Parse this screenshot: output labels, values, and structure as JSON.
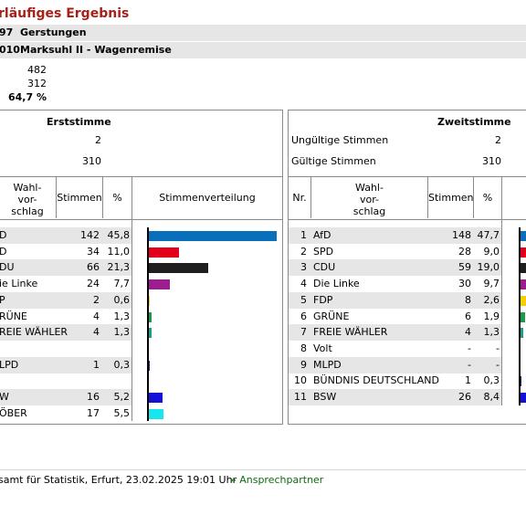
{
  "header": {
    "title": "rläufiges Ergebnis",
    "row1": {
      "code": "97",
      "name": "Gerstungen"
    },
    "row2": {
      "code": "010",
      "name": "Marksuhl II - Wagenremise"
    }
  },
  "stats": {
    "values": [
      "482",
      "312",
      "64,7 %"
    ]
  },
  "erststimme": {
    "title": "Erststimme",
    "invalid_value": "2",
    "valid_value": "310",
    "col_headers": {
      "vorschlag": "Wahl-\nvor-\nschlag",
      "stimmen": "Stimmen",
      "pct": "%",
      "verteilung": "Stimmenverteilung"
    },
    "rows": [
      {
        "name": "D",
        "votes": "142",
        "pct": "45,8",
        "value": 45.8,
        "color": "#0a6fba"
      },
      {
        "name": "D",
        "votes": "34",
        "pct": "11,0",
        "value": 11.0,
        "color": "#e2001a"
      },
      {
        "name": "DU",
        "votes": "66",
        "pct": "21,3",
        "value": 21.3,
        "color": "#1f1f1f"
      },
      {
        "name": "ie Linke",
        "votes": "24",
        "pct": "7,7",
        "value": 7.7,
        "color": "#9b1d8f"
      },
      {
        "name": "P",
        "votes": "2",
        "pct": "0,6",
        "value": 0.6,
        "color": "#f5d000"
      },
      {
        "name": "RÜNE",
        "votes": "4",
        "pct": "1,3",
        "value": 1.3,
        "color": "#1d9a47"
      },
      {
        "name": "REIE WÄHLER",
        "votes": "4",
        "pct": "1,3",
        "value": 1.3,
        "color": "#1a9e8f"
      },
      {
        "name": "",
        "votes": "",
        "pct": "",
        "value": 0,
        "color": "#ffffff"
      },
      {
        "name": "LPD",
        "votes": "1",
        "pct": "0,3",
        "value": 0.3,
        "color": "#1b2a7a"
      },
      {
        "name": "",
        "votes": "",
        "pct": "",
        "value": 0,
        "color": "#ffffff"
      },
      {
        "name": "W",
        "votes": "16",
        "pct": "5,2",
        "value": 5.2,
        "color": "#1410d6"
      },
      {
        "name": "ÖBER",
        "votes": "17",
        "pct": "5,5",
        "value": 5.5,
        "color": "#17e6ef"
      }
    ]
  },
  "zweitstimme": {
    "title": "Zweitstimme",
    "invalid_label": "Ungültige Stimmen",
    "invalid_value": "2",
    "valid_label": "Gültige Stimmen",
    "valid_value": "310",
    "col_headers": {
      "nr": "Nr.",
      "vorschlag": "Wahl-\nvor-\nschlag",
      "stimmen": "Stimmen",
      "pct": "%"
    },
    "rows": [
      {
        "nr": "1",
        "name": "AfD",
        "votes": "148",
        "pct": "47,7",
        "value": 47.7,
        "color": "#0a6fba"
      },
      {
        "nr": "2",
        "name": "SPD",
        "votes": "28",
        "pct": "9,0",
        "value": 9.0,
        "color": "#e2001a"
      },
      {
        "nr": "3",
        "name": "CDU",
        "votes": "59",
        "pct": "19,0",
        "value": 19.0,
        "color": "#1f1f1f"
      },
      {
        "nr": "4",
        "name": "Die Linke",
        "votes": "30",
        "pct": "9,7",
        "value": 9.7,
        "color": "#9b1d8f"
      },
      {
        "nr": "5",
        "name": "FDP",
        "votes": "8",
        "pct": "2,6",
        "value": 2.6,
        "color": "#f5d000"
      },
      {
        "nr": "6",
        "name": "GRÜNE",
        "votes": "6",
        "pct": "1,9",
        "value": 1.9,
        "color": "#1d9a47"
      },
      {
        "nr": "7",
        "name": "FREIE WÄHLER",
        "votes": "4",
        "pct": "1,3",
        "value": 1.3,
        "color": "#1a9e8f"
      },
      {
        "nr": "8",
        "name": "Volt",
        "votes": "-",
        "pct": "-",
        "value": 0,
        "color": "#ffffff"
      },
      {
        "nr": "9",
        "name": "MLPD",
        "votes": "-",
        "pct": "-",
        "value": 0,
        "color": "#ffffff"
      },
      {
        "nr": "10",
        "name": "BÜNDNIS DEUTSCHLAND",
        "votes": "1",
        "pct": "0,3",
        "value": 0.3,
        "color": "#1b2a7a"
      },
      {
        "nr": "11",
        "name": "BSW",
        "votes": "26",
        "pct": "8,4",
        "value": 8.4,
        "color": "#1410d6"
      }
    ]
  },
  "footer": {
    "source": "samt für Statistik, Erfurt, 23.02.2025 19:01 Uhr",
    "link": "» Ansprechpartner"
  }
}
